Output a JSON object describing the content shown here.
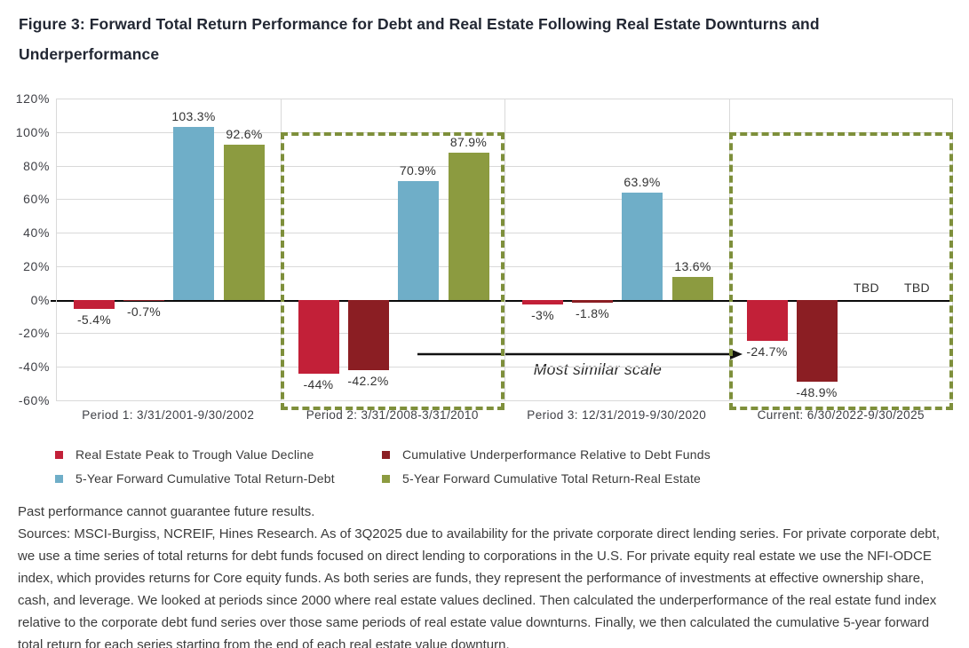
{
  "header": {
    "title": "Figure 3: Forward Total Return Performance for Debt and Real Estate Following Real Estate Downturns and Underperformance"
  },
  "chart_data": {
    "type": "bar",
    "title": "Forward Total Return Performance for Debt and Real Estate Following Real Estate Downturns and Underperformance",
    "categories": [
      "Period 1:  3/31/2001-9/30/2002",
      "Period 2:  3/31/2008-3/31/2010",
      "Period 3:  12/31/2019-9/30/2020",
      "Current:  6/30/2022-9/30/2025"
    ],
    "series": [
      {
        "name": "Real Estate Peak to Trough Value Decline",
        "color": "#c22038",
        "values": [
          -5.4,
          -44,
          -3,
          -24.7
        ],
        "labels": [
          "-5.4%",
          "-44%",
          "-3%",
          "-24.7%"
        ]
      },
      {
        "name": "Cumulative Underperformance Relative to Debt Funds",
        "color": "#8b1e23",
        "values": [
          -0.7,
          -42.2,
          -1.8,
          -48.9
        ],
        "labels": [
          "-0.7%",
          "-42.2%",
          "-1.8%",
          "-48.9%"
        ]
      },
      {
        "name": "5-Year Forward Cumulative Total Return-Debt",
        "color": "#6faec8",
        "values": [
          103.3,
          70.9,
          63.9,
          null
        ],
        "labels": [
          "103.3%",
          "70.9%",
          "63.9%",
          "TBD"
        ]
      },
      {
        "name": "5-Year Forward Cumulative Total Return-Real Estate",
        "color": "#8c9b40",
        "values": [
          92.6,
          87.9,
          13.6,
          null
        ],
        "labels": [
          "92.6%",
          "87.9%",
          "13.6%",
          "TBD"
        ]
      }
    ],
    "ylim": [
      -60,
      120
    ],
    "y_tick_step": 20,
    "y_tick_labels": [
      "120%",
      "100%",
      "80%",
      "60%",
      "40%",
      "20%",
      "0%",
      "-20%",
      "-40%",
      "-60%"
    ],
    "grid": true,
    "legend_position": "bottom",
    "annotation": "Most similar scale",
    "highlight_groups": [
      1,
      3
    ],
    "highlight_color": "#7e8f3b",
    "gridline_color": "#d9d9d9"
  },
  "footer": {
    "disclaimer": "Past performance cannot guarantee future results.",
    "sources": "Sources: MSCI-Burgiss, NCREIF, Hines Research. As of 3Q2025 due to availability for the private corporate direct lending series. For private corporate debt, we use a time series of total returns for debt funds focused on direct lending to corporations in the U.S. For private equity real estate we use the NFI-ODCE index, which provides returns for Core equity funds. As both series are funds, they represent the performance of investments at effective ownership share, cash, and leverage. We looked at periods since 2000 where real estate values declined. Then calculated the underperformance of the real estate fund index relative to the corporate debt fund series over those same periods of real estate value downturns. Finally, we then calculated the cumulative 5-year forward total return for each series starting from the end of each real estate value downturn."
  }
}
